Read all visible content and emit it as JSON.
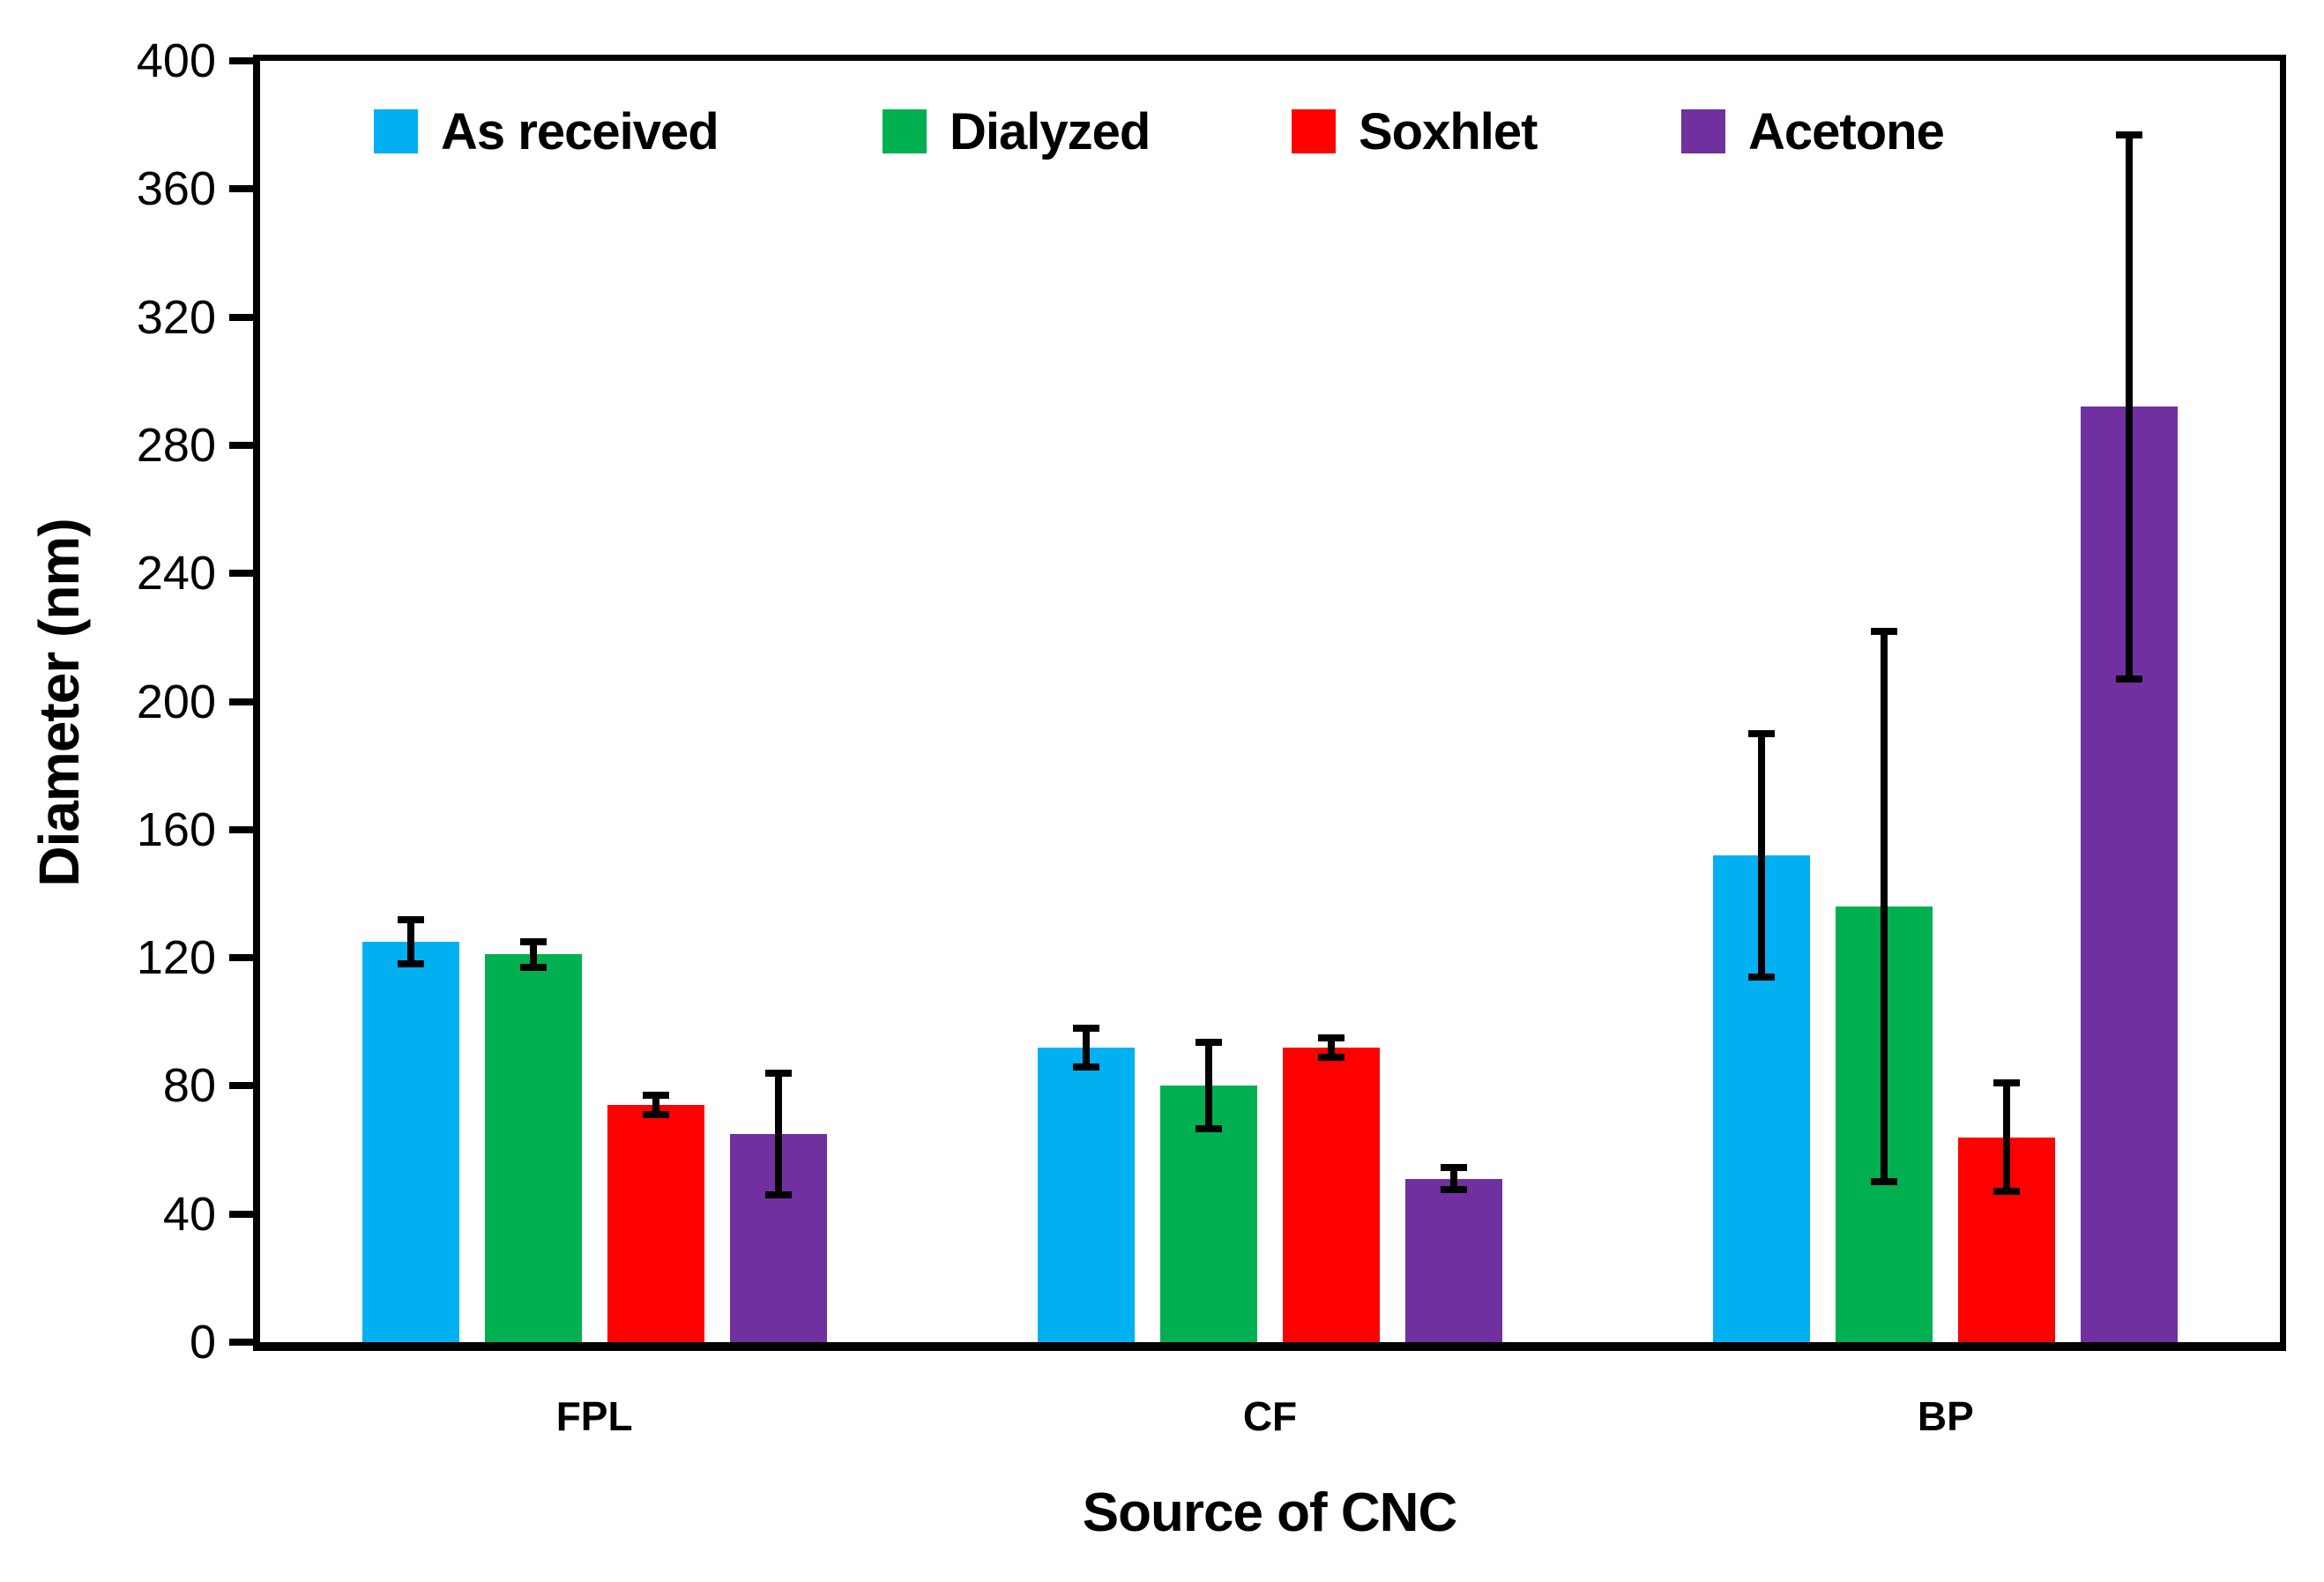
{
  "chart_data": {
    "type": "bar",
    "title": "",
    "xlabel": "Source of CNC",
    "ylabel": "Diameter (nm)",
    "ylim": [
      0,
      400
    ],
    "yticks": [
      0,
      40,
      80,
      120,
      160,
      200,
      240,
      280,
      320,
      360,
      400
    ],
    "grid": false,
    "legend_position": "top-inside",
    "background_color": "#FFFFFF",
    "axis_color": "#000000",
    "error_bar_color": "#000000",
    "categories": [
      "FPL",
      "CF",
      "BP"
    ],
    "series": [
      {
        "name": "As received",
        "color": "#00B0F0",
        "values": [
          125,
          92,
          152
        ],
        "errors": [
          7,
          6,
          38
        ]
      },
      {
        "name": "Dialyzed",
        "color": "#00B050",
        "values": [
          121,
          80,
          136
        ],
        "errors": [
          4,
          13.5,
          86
        ]
      },
      {
        "name": "Soxhlet",
        "color": "#FF0000",
        "values": [
          74,
          92,
          64
        ],
        "errors": [
          3,
          3,
          17
        ]
      },
      {
        "name": "Acetone",
        "color": "#7030A0",
        "values": [
          65,
          51,
          292
        ],
        "errors": [
          19,
          3.5,
          85
        ]
      }
    ]
  }
}
